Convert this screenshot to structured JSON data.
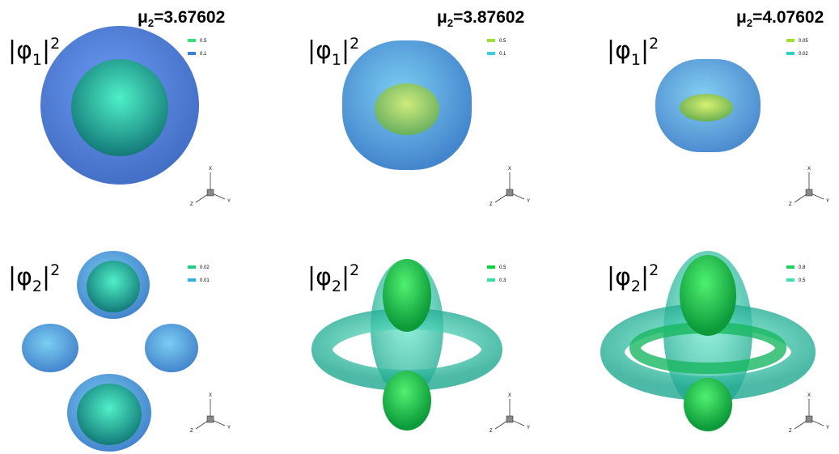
{
  "titles": [
    {
      "symbol": "μ",
      "subscript": "2",
      "value": "=3.67602"
    },
    {
      "symbol": "μ",
      "subscript": "2",
      "value": "=3.87602"
    },
    {
      "symbol": "μ",
      "subscript": "2",
      "value": "=4.07602"
    }
  ],
  "panels": [
    [
      {
        "label": {
          "symbol": "|φ",
          "subscript": "1",
          "bar": "|",
          "superscript": "2"
        },
        "legend": [
          {
            "level": "0.5",
            "color": "#33e07a"
          },
          {
            "level": "0.1",
            "color": "#3a7fd8"
          }
        ],
        "axes": {
          "x": "X",
          "y": "Y",
          "z": "Z"
        }
      },
      {
        "label": {
          "symbol": "|φ",
          "subscript": "1",
          "bar": "|",
          "superscript": "2"
        },
        "legend": [
          {
            "level": "0.5",
            "color": "#9be03a"
          },
          {
            "level": "0.1",
            "color": "#3ccfe0"
          }
        ],
        "axes": {
          "x": "X",
          "y": "Y",
          "z": "Z"
        }
      },
      {
        "label": {
          "symbol": "|φ",
          "subscript": "1",
          "bar": "|",
          "superscript": "2"
        },
        "legend": [
          {
            "level": "0.05",
            "color": "#a0e030"
          },
          {
            "level": "0.02",
            "color": "#30d0c8"
          }
        ],
        "axes": {
          "x": "X",
          "y": "Y",
          "z": "Z"
        }
      }
    ],
    [
      {
        "label": {
          "symbol": "|φ",
          "subscript": "2",
          "bar": "|",
          "superscript": "2"
        },
        "legend": [
          {
            "level": "0.02",
            "color": "#20d080"
          },
          {
            "level": "0.01",
            "color": "#30b0e0"
          }
        ],
        "axes": {
          "x": "X",
          "y": "Y",
          "z": "Z"
        }
      },
      {
        "label": {
          "symbol": "|φ",
          "subscript": "2",
          "bar": "|",
          "superscript": "2"
        },
        "legend": [
          {
            "level": "0.5",
            "color": "#10d040"
          },
          {
            "level": "0.3",
            "color": "#30e0a0"
          }
        ],
        "axes": {
          "x": "X",
          "y": "Y",
          "z": "Z"
        }
      },
      {
        "label": {
          "symbol": "|φ",
          "subscript": "2",
          "bar": "|",
          "superscript": "2"
        },
        "legend": [
          {
            "level": "0.8",
            "color": "#20d060"
          },
          {
            "level": "0.5",
            "color": "#40e0b0"
          }
        ],
        "axes": {
          "x": "X",
          "y": "Y",
          "z": "Z"
        }
      }
    ]
  ]
}
